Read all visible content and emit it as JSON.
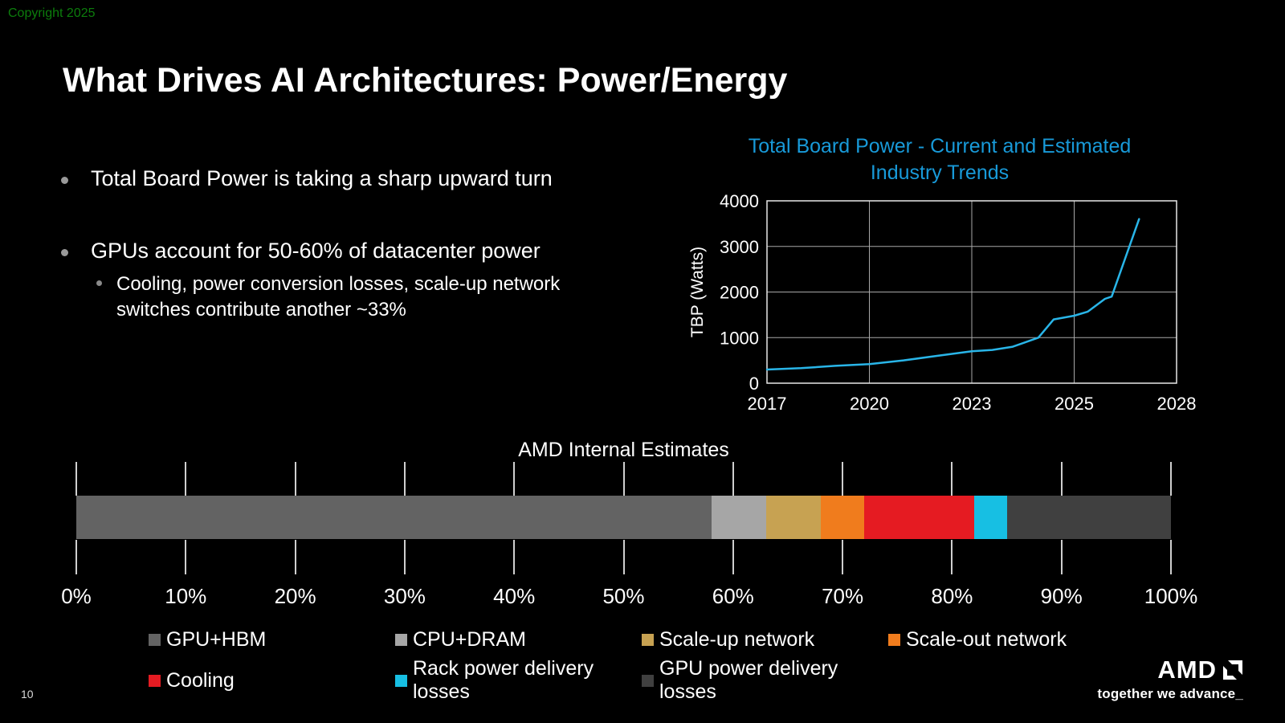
{
  "page": {
    "copyright": "Copyright 2025",
    "copyright_color": "#0c7d0c",
    "page_number": "10",
    "title": "What Drives AI Architectures: Power/Energy"
  },
  "bullets": {
    "b1": "Total Board Power is taking a sharp upward turn",
    "b2": "GPUs account for 50-60% of datacenter power",
    "b2_sub": "Cooling, power conversion losses, scale-up network switches contribute another ~33%"
  },
  "footer": {
    "amd_logo": "AMD",
    "tagline": "together we advance_"
  },
  "chart_data": [
    {
      "type": "line",
      "title": "Total Board Power - Current and Estimated Industry Trends",
      "title_lines": [
        "Total Board Power - Current and Estimated",
        "Industry Trends"
      ],
      "title_color": "#189ad9",
      "ylabel": "TBP (Watts)",
      "ylim": [
        0,
        4000
      ],
      "yticks": [
        0,
        1000,
        2000,
        3000,
        4000
      ],
      "xticks": [
        2017,
        2020,
        2023,
        2025,
        2028
      ],
      "x_gridlines": [
        2020,
        2023,
        2025
      ],
      "grid": true,
      "series": [
        {
          "name": "Total Board Power",
          "color": "#29b5e8",
          "points": [
            [
              2017,
              300
            ],
            [
              2018,
              330
            ],
            [
              2019,
              380
            ],
            [
              2020,
              420
            ],
            [
              2021,
              500
            ],
            [
              2022,
              600
            ],
            [
              2023,
              700
            ],
            [
              2023.4,
              730
            ],
            [
              2023.8,
              800
            ],
            [
              2024.3,
              1000
            ],
            [
              2024.6,
              1400
            ],
            [
              2025,
              1480
            ],
            [
              2025.4,
              1570
            ],
            [
              2025.9,
              1850
            ],
            [
              2026.1,
              1900
            ],
            [
              2026.9,
              3600
            ]
          ]
        }
      ]
    },
    {
      "type": "stacked-bar",
      "title": "AMD Internal Estimates",
      "xticks_pct": [
        0,
        10,
        20,
        30,
        40,
        50,
        60,
        70,
        80,
        90,
        100
      ],
      "xtick_suffix": "%",
      "segments": [
        {
          "label": "GPU+HBM",
          "value": 58,
          "color": "#636363"
        },
        {
          "label": "CPU+DRAM",
          "value": 5,
          "color": "#a6a6a6"
        },
        {
          "label": "Scale-up network",
          "value": 5,
          "color": "#c7a252"
        },
        {
          "label": "Scale-out network",
          "value": 4,
          "color": "#f07c1d"
        },
        {
          "label": "Cooling",
          "value": 10,
          "color": "#e51b22"
        },
        {
          "label": "Rack power delivery losses",
          "value": 3,
          "color": "#17bfe3"
        },
        {
          "label": "GPU power delivery losses",
          "value": 15,
          "color": "#404040"
        }
      ]
    }
  ]
}
